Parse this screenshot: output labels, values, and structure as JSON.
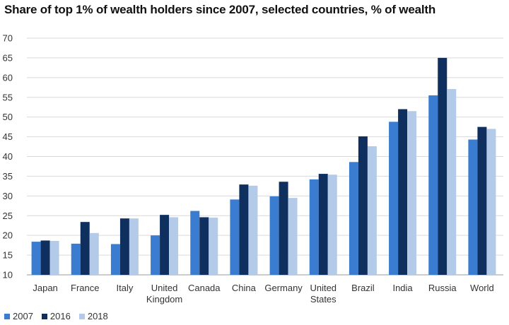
{
  "chart_data": {
    "type": "bar",
    "title": "Share of top 1% of wealth holders since 2007, selected countries, % of wealth",
    "xlabel": "",
    "ylabel": "",
    "ylim": [
      10,
      70
    ],
    "yticks": [
      10,
      15,
      20,
      25,
      30,
      35,
      40,
      45,
      50,
      55,
      60,
      65,
      70
    ],
    "grid": true,
    "legend_position": "bottom-left",
    "categories": [
      [
        "Japan"
      ],
      [
        "France"
      ],
      [
        "Italy"
      ],
      [
        "United",
        "Kingdom"
      ],
      [
        "Canada"
      ],
      [
        "China"
      ],
      [
        "Germany"
      ],
      [
        "United",
        "States"
      ],
      [
        "Brazil"
      ],
      [
        "India"
      ],
      [
        "Russia"
      ],
      [
        "World"
      ]
    ],
    "series": [
      {
        "name": "2007",
        "color": "#3a7cd0",
        "values": [
          18.4,
          17.9,
          17.8,
          20.0,
          26.2,
          29.1,
          29.9,
          34.2,
          38.6,
          48.8,
          55.5,
          44.3
        ]
      },
      {
        "name": "2016",
        "color": "#0f2f5f",
        "values": [
          18.7,
          23.4,
          24.3,
          25.2,
          24.6,
          32.9,
          33.6,
          35.6,
          45.1,
          52.0,
          65.0,
          47.5
        ]
      },
      {
        "name": "2018",
        "color": "#b3cbe8",
        "values": [
          18.6,
          20.6,
          24.3,
          24.6,
          24.5,
          32.6,
          29.5,
          35.4,
          42.6,
          51.5,
          57.1,
          47.0
        ]
      }
    ]
  }
}
